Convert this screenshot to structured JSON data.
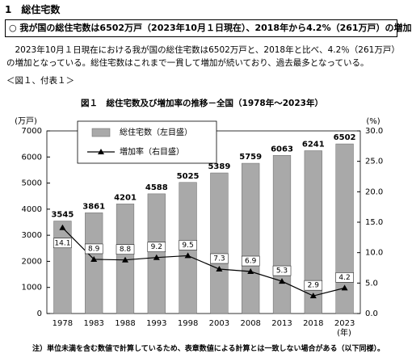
{
  "heading": "1　総住宅数",
  "summary": "○ 我が国の総住宅数は6502万戸（2023年10月１日現在）、2018年から4.2%（261万戸）の増加",
  "paragraph": "2023年10月１日現在における我が国の総住宅数は6502万戸と、2018年と比べ、4.2％（261万戸）の増加となっている。総住宅数はこれまで一貫して増加が続いており、過去最多となっている。",
  "reference": "＜図１、付表１＞",
  "chart_data": {
    "type": "combo",
    "title": "図１　総住宅数及び増加率の推移－全国（1978年～2023年）",
    "ylabel": "(万戸)",
    "y2label": "(%)",
    "xlabel": "(年)",
    "categories": [
      "1978",
      "1983",
      "1988",
      "1993",
      "1998",
      "2003",
      "2008",
      "2013",
      "2018",
      "2023"
    ],
    "series": [
      {
        "name": "総住宅数（左目盛）",
        "type": "bar",
        "color": "#a9a9a9",
        "values": [
          3545,
          3861,
          4201,
          4588,
          5025,
          5389,
          5759,
          6063,
          6241,
          6502
        ]
      },
      {
        "name": "増加率（右目盛）",
        "type": "line",
        "axis": "y2",
        "color": "#000000",
        "values": [
          14.1,
          8.9,
          8.8,
          9.2,
          9.5,
          7.3,
          6.9,
          5.3,
          2.9,
          4.2
        ]
      }
    ],
    "ylim": [
      0,
      7000
    ],
    "yticks": [
      0,
      1000,
      2000,
      3000,
      4000,
      5000,
      6000,
      7000
    ],
    "y2lim": [
      0,
      30
    ],
    "y2ticks": [
      {
        "value": 0,
        "label": "0.0"
      },
      {
        "value": 5,
        "label": "5.0"
      },
      {
        "value": 10,
        "label": "10.0"
      },
      {
        "value": 15,
        "label": "15.0"
      },
      {
        "value": 20,
        "label": "20.0"
      },
      {
        "value": 25,
        "label": "25.0"
      },
      {
        "value": 30,
        "label": "30.0"
      }
    ]
  },
  "note": "注）単位未満を含む数値で計算しているため、表章数値による計算とは一致しない場合がある（以下同様）。"
}
